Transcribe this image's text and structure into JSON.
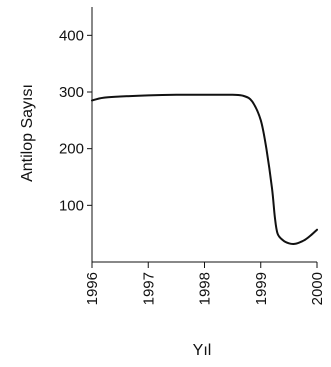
{
  "chart_data": {
    "type": "line",
    "xlabel": "Yıl",
    "ylabel": "Antilop Sayısı",
    "xlim": [
      1996,
      2000
    ],
    "ylim": [
      0,
      450
    ],
    "x_ticks": [
      1996,
      1997,
      1998,
      1999,
      2000
    ],
    "x_tick_labels": [
      "1996",
      "1997",
      "1998",
      "1999",
      "2000"
    ],
    "y_ticks": [
      100,
      200,
      300,
      400
    ],
    "y_tick_labels": [
      "100",
      "200",
      "300",
      "400"
    ],
    "grid": false,
    "series": [
      {
        "color": "#111111",
        "x": [
          1996.0,
          1996.2,
          1996.5,
          1997.0,
          1997.5,
          1998.0,
          1998.5,
          1998.7,
          1998.85,
          1999.0,
          1999.1,
          1999.2,
          1999.25,
          1999.3,
          1999.4,
          1999.5,
          1999.6,
          1999.7,
          1999.8,
          1999.9,
          2000.0
        ],
        "y": [
          285,
          290,
          292,
          294,
          295,
          295,
          295,
          293,
          283,
          250,
          200,
          130,
          80,
          50,
          38,
          33,
          32,
          35,
          40,
          48,
          57
        ]
      }
    ]
  }
}
